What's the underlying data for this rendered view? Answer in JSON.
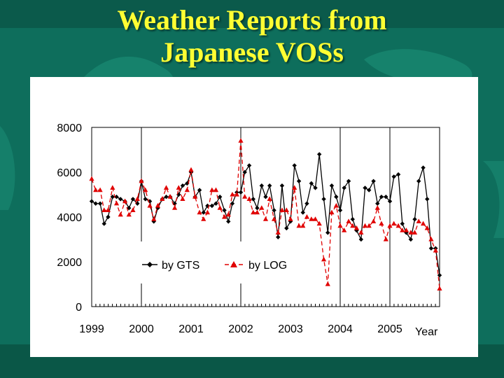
{
  "slide": {
    "title_line1": "Weather Reports from",
    "title_line2": "Japanese VOSs"
  },
  "colors": {
    "background": "#0e6e5c",
    "title": "#ffff33",
    "gts": "#000000",
    "log": "#e00000"
  },
  "chart_data": {
    "type": "line",
    "title": "",
    "xlabel": "Year",
    "ylabel": "",
    "ylim": [
      0,
      8000
    ],
    "yticks": [
      0,
      2000,
      4000,
      6000,
      8000
    ],
    "year_labels": [
      "1999",
      "2000",
      "2001",
      "2002",
      "2003",
      "2004",
      "2005"
    ],
    "grid": "vertical lines at 2000, 2002, 2004, 2005",
    "legend_position": "inside-bottom-left",
    "series": [
      {
        "name": "by GTS",
        "color": "#000000",
        "style": "solid",
        "marker": "diamond",
        "points": [
          [
            1999.0,
            4700
          ],
          [
            1999.08,
            4600
          ],
          [
            1999.17,
            4600
          ],
          [
            1999.25,
            3700
          ],
          [
            1999.33,
            4000
          ],
          [
            1999.42,
            4900
          ],
          [
            1999.5,
            4900
          ],
          [
            1999.58,
            4800
          ],
          [
            1999.67,
            4700
          ],
          [
            1999.75,
            4400
          ],
          [
            1999.83,
            4800
          ],
          [
            1999.92,
            4600
          ],
          [
            2000.0,
            5600
          ],
          [
            2000.08,
            4800
          ],
          [
            2000.17,
            4700
          ],
          [
            2000.25,
            3800
          ],
          [
            2000.33,
            4400
          ],
          [
            2000.42,
            4800
          ],
          [
            2000.5,
            4900
          ],
          [
            2000.58,
            4900
          ],
          [
            2000.67,
            4600
          ],
          [
            2000.75,
            5000
          ],
          [
            2000.83,
            5400
          ],
          [
            2000.92,
            5500
          ],
          [
            2001.0,
            6000
          ],
          [
            2001.08,
            4900
          ],
          [
            2001.17,
            5200
          ],
          [
            2001.25,
            4200
          ],
          [
            2001.33,
            4500
          ],
          [
            2001.42,
            4500
          ],
          [
            2001.5,
            4600
          ],
          [
            2001.58,
            4900
          ],
          [
            2001.67,
            4300
          ],
          [
            2001.75,
            3800
          ],
          [
            2001.83,
            4600
          ],
          [
            2001.92,
            5100
          ],
          [
            2002.0,
            5100
          ],
          [
            2002.08,
            6000
          ],
          [
            2002.17,
            6300
          ],
          [
            2002.25,
            4800
          ],
          [
            2002.33,
            4400
          ],
          [
            2002.42,
            5400
          ],
          [
            2002.5,
            4900
          ],
          [
            2002.58,
            5400
          ],
          [
            2002.67,
            4300
          ],
          [
            2002.75,
            3100
          ],
          [
            2002.83,
            5400
          ],
          [
            2002.92,
            3500
          ],
          [
            2003.0,
            3800
          ],
          [
            2003.08,
            6300
          ],
          [
            2003.17,
            5600
          ],
          [
            2003.25,
            4200
          ],
          [
            2003.33,
            4600
          ],
          [
            2003.42,
            5500
          ],
          [
            2003.5,
            5300
          ],
          [
            2003.58,
            6800
          ],
          [
            2003.67,
            4800
          ],
          [
            2003.75,
            3300
          ],
          [
            2003.83,
            5400
          ],
          [
            2003.92,
            4900
          ],
          [
            2004.0,
            4300
          ],
          [
            2004.08,
            5300
          ],
          [
            2004.17,
            5600
          ],
          [
            2004.25,
            3900
          ],
          [
            2004.33,
            3400
          ],
          [
            2004.42,
            3000
          ],
          [
            2004.5,
            5300
          ],
          [
            2004.58,
            5200
          ],
          [
            2004.67,
            5600
          ],
          [
            2004.75,
            4600
          ],
          [
            2004.83,
            4900
          ],
          [
            2004.92,
            4900
          ],
          [
            2005.0,
            4700
          ],
          [
            2005.08,
            5800
          ],
          [
            2005.17,
            5900
          ],
          [
            2005.25,
            3700
          ],
          [
            2005.33,
            3300
          ],
          [
            2005.42,
            3000
          ],
          [
            2005.5,
            3900
          ],
          [
            2005.58,
            5600
          ],
          [
            2005.67,
            6200
          ],
          [
            2005.75,
            4800
          ],
          [
            2005.83,
            2600
          ],
          [
            2005.92,
            2600
          ],
          [
            2006.0,
            1400
          ]
        ]
      },
      {
        "name": "by LOG",
        "color": "#e00000",
        "style": "dashed",
        "marker": "triangle",
        "points": [
          [
            1999.0,
            5700
          ],
          [
            1999.08,
            5200
          ],
          [
            1999.17,
            5200
          ],
          [
            1999.25,
            4300
          ],
          [
            1999.33,
            4300
          ],
          [
            1999.42,
            5300
          ],
          [
            1999.5,
            4600
          ],
          [
            1999.58,
            4100
          ],
          [
            1999.67,
            4700
          ],
          [
            1999.75,
            4100
          ],
          [
            1999.83,
            4300
          ],
          [
            1999.92,
            4800
          ],
          [
            2000.0,
            5600
          ],
          [
            2000.08,
            5200
          ],
          [
            2000.17,
            4500
          ],
          [
            2000.25,
            3900
          ],
          [
            2000.33,
            4500
          ],
          [
            2000.42,
            4800
          ],
          [
            2000.5,
            5300
          ],
          [
            2000.58,
            4900
          ],
          [
            2000.67,
            4400
          ],
          [
            2000.75,
            5300
          ],
          [
            2000.83,
            4800
          ],
          [
            2000.92,
            5200
          ],
          [
            2001.0,
            6100
          ],
          [
            2001.08,
            4900
          ],
          [
            2001.17,
            4200
          ],
          [
            2001.25,
            3900
          ],
          [
            2001.33,
            4200
          ],
          [
            2001.42,
            5200
          ],
          [
            2001.5,
            5200
          ],
          [
            2001.58,
            4400
          ],
          [
            2001.67,
            4000
          ],
          [
            2001.75,
            4100
          ],
          [
            2001.83,
            5000
          ],
          [
            2001.92,
            5000
          ],
          [
            2002.0,
            7400
          ],
          [
            2002.08,
            4900
          ],
          [
            2002.17,
            4800
          ],
          [
            2002.25,
            4200
          ],
          [
            2002.33,
            4200
          ],
          [
            2002.42,
            4400
          ],
          [
            2002.5,
            3900
          ],
          [
            2002.58,
            4800
          ],
          [
            2002.67,
            3900
          ],
          [
            2002.75,
            3300
          ],
          [
            2002.83,
            4300
          ],
          [
            2002.92,
            4300
          ],
          [
            2003.0,
            3900
          ],
          [
            2003.08,
            5300
          ],
          [
            2003.17,
            3600
          ],
          [
            2003.25,
            3600
          ],
          [
            2003.33,
            4000
          ],
          [
            2003.42,
            3900
          ],
          [
            2003.5,
            3900
          ],
          [
            2003.58,
            3700
          ],
          [
            2003.67,
            2100
          ],
          [
            2003.75,
            1000
          ],
          [
            2003.83,
            4200
          ],
          [
            2003.92,
            4500
          ],
          [
            2004.0,
            3600
          ],
          [
            2004.08,
            3400
          ],
          [
            2004.17,
            3800
          ],
          [
            2004.25,
            3600
          ],
          [
            2004.33,
            3500
          ],
          [
            2004.42,
            3300
          ],
          [
            2004.5,
            3600
          ],
          [
            2004.58,
            3600
          ],
          [
            2004.67,
            3800
          ],
          [
            2004.75,
            4400
          ],
          [
            2004.83,
            3700
          ],
          [
            2004.92,
            3000
          ],
          [
            2005.0,
            3600
          ],
          [
            2005.08,
            3700
          ],
          [
            2005.17,
            3600
          ],
          [
            2005.25,
            3400
          ],
          [
            2005.33,
            3400
          ],
          [
            2005.42,
            3300
          ],
          [
            2005.5,
            3300
          ],
          [
            2005.58,
            3800
          ],
          [
            2005.67,
            3700
          ],
          [
            2005.75,
            3500
          ],
          [
            2005.83,
            3000
          ],
          [
            2005.92,
            2500
          ],
          [
            2006.0,
            800
          ]
        ]
      }
    ]
  }
}
